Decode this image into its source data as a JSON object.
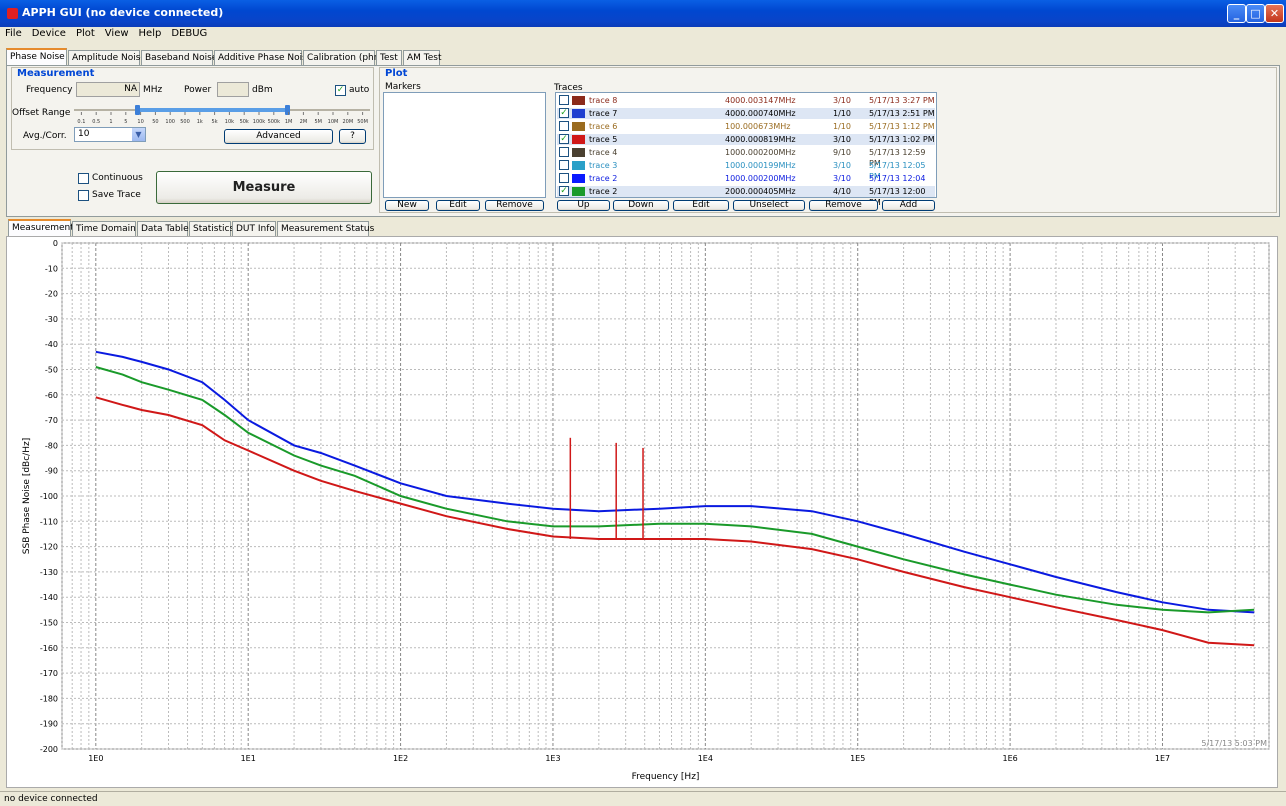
{
  "window": {
    "title": "APPH GUI (no device connected)"
  },
  "menu": [
    "File",
    "Device",
    "Plot",
    "View",
    "Help",
    "DEBUG"
  ],
  "main_tabs": [
    "Phase Noise",
    "Amplitude Noise",
    "Baseband Noise",
    "Additive Phase Noise",
    "Calibration (phn)",
    "Test",
    "AM Test"
  ],
  "measurement": {
    "title": "Measurement",
    "frequency_label": "Frequency",
    "frequency_value": "NA",
    "frequency_unit": "MHz",
    "power_label": "Power",
    "power_value": "",
    "power_unit": "dBm",
    "auto_label": "auto",
    "auto_checked": true,
    "offset_range_label": "Offset Range",
    "offset_ticks": [
      "0.1",
      "0.5",
      "1",
      "5",
      "10",
      "50",
      "100",
      "500",
      "1k",
      "5k",
      "10k",
      "50k",
      "100k",
      "500k",
      "1M",
      "2M",
      "5M",
      "10M",
      "20M",
      "50M"
    ],
    "avg_label": "Avg./Corr.",
    "avg_value": "10",
    "advanced_label": "Advanced",
    "help_label": "?",
    "continuous_label": "Continuous",
    "save_trace_label": "Save Trace",
    "measure_label": "Measure"
  },
  "plot_panel": {
    "title": "Plot",
    "markers_label": "Markers",
    "traces_label": "Traces",
    "marker_buttons": [
      "New",
      "Edit",
      "Remove"
    ],
    "trace_buttons": [
      "Up",
      "Down",
      "Edit",
      "Unselect",
      "Remove",
      "Add"
    ],
    "traces": [
      {
        "checked": false,
        "swatch": "#8b2a1a",
        "name": "trace 8",
        "freq": "4000.003147MHz",
        "avg": "3/10",
        "date": "5/17/13 3:27 PM",
        "text_color": "#8b2a1a",
        "selected": false
      },
      {
        "checked": true,
        "swatch": "#1f3fd0",
        "name": "trace 7",
        "freq": "4000.000740MHz",
        "avg": "1/10",
        "date": "5/17/13 2:51 PM",
        "text_color": "#000000",
        "selected": true
      },
      {
        "checked": false,
        "swatch": "#9a6b1f",
        "name": "trace 6",
        "freq": "100.000673MHz",
        "avg": "1/10",
        "date": "5/17/13 1:12 PM",
        "text_color": "#9a6b1f",
        "selected": false
      },
      {
        "checked": true,
        "swatch": "#d01818",
        "name": "trace 5",
        "freq": "4000.000819MHz",
        "avg": "3/10",
        "date": "5/17/13 1:02 PM",
        "text_color": "#000000",
        "selected": true
      },
      {
        "checked": false,
        "swatch": "#4a4030",
        "name": "trace 4",
        "freq": "1000.000200MHz",
        "avg": "9/10",
        "date": "5/17/13 12:59 PM",
        "text_color": "#4a4030",
        "selected": false
      },
      {
        "checked": false,
        "swatch": "#2aa0c8",
        "name": "trace 3",
        "freq": "1000.000199MHz",
        "avg": "3/10",
        "date": "5/17/13 12:05 PM",
        "text_color": "#2a90c0",
        "selected": false
      },
      {
        "checked": false,
        "swatch": "#0a1aff",
        "name": "trace 2",
        "freq": "1000.000200MHz",
        "avg": "3/10",
        "date": "5/17/13 12:04 PM",
        "text_color": "#0a1ae0",
        "selected": false
      },
      {
        "checked": true,
        "swatch": "#1a9a2a",
        "name": "trace 2",
        "freq": "2000.000405MHz",
        "avg": "4/10",
        "date": "5/17/13 12:00 PM",
        "text_color": "#000000",
        "selected": true
      }
    ]
  },
  "sub_tabs": [
    "Measurement",
    "Time Domain",
    "Data Table",
    "Statistics",
    "DUT Info",
    "Measurement Status"
  ],
  "chart_data": {
    "type": "line",
    "xlabel": "Frequency [Hz]",
    "ylabel": "SSB Phase Noise [dBc/Hz]",
    "x_scale": "log",
    "xlim": [
      0.6,
      50000000
    ],
    "ylim": [
      -200,
      0
    ],
    "x_tick_labels": [
      "1E0",
      "1E1",
      "1E2",
      "1E3",
      "1E4",
      "1E5",
      "1E6",
      "1E7"
    ],
    "y_tick_values": [
      0,
      -10,
      -20,
      -30,
      -40,
      -50,
      -60,
      -70,
      -80,
      -90,
      -100,
      -110,
      -120,
      -130,
      -140,
      -150,
      -160,
      -170,
      -180,
      -190,
      -200
    ],
    "grid": true,
    "timestamp": "5/17/13 5:03 PM",
    "series": [
      {
        "color": "#0a1ae0",
        "x": [
          1,
          1.5,
          2,
          3,
          5,
          7,
          10,
          20,
          30,
          50,
          100,
          200,
          500,
          1000,
          2000,
          5000,
          10000,
          20000,
          50000,
          100000,
          200000,
          500000,
          1000000,
          2000000,
          5000000,
          10000000,
          20000000,
          40000000
        ],
        "y": [
          -43,
          -45,
          -47,
          -50,
          -55,
          -62,
          -70,
          -80,
          -83,
          -88,
          -95,
          -100,
          -103,
          -105,
          -106,
          -105,
          -104,
          -104,
          -106,
          -110,
          -115,
          -122,
          -127,
          -132,
          -138,
          -142,
          -145,
          -146
        ]
      },
      {
        "color": "#1a9a2a",
        "x": [
          1,
          1.5,
          2,
          3,
          5,
          7,
          10,
          20,
          30,
          50,
          100,
          200,
          500,
          1000,
          2000,
          5000,
          10000,
          20000,
          50000,
          100000,
          200000,
          500000,
          1000000,
          2000000,
          5000000,
          10000000,
          20000000,
          40000000
        ],
        "y": [
          -49,
          -52,
          -55,
          -58,
          -62,
          -68,
          -75,
          -84,
          -88,
          -92,
          -100,
          -105,
          -110,
          -112,
          -112,
          -111,
          -111,
          -112,
          -115,
          -120,
          -125,
          -131,
          -135,
          -139,
          -143,
          -145,
          -146,
          -145
        ]
      },
      {
        "color": "#d01818",
        "x": [
          1,
          1.5,
          2,
          3,
          5,
          7,
          10,
          20,
          30,
          50,
          100,
          200,
          500,
          1000,
          2000,
          5000,
          10000,
          20000,
          50000,
          100000,
          200000,
          500000,
          1000000,
          2000000,
          5000000,
          10000000,
          20000000,
          40000000
        ],
        "y": [
          -61,
          -64,
          -66,
          -68,
          -72,
          -78,
          -82,
          -90,
          -94,
          -98,
          -103,
          -108,
          -113,
          -116,
          -117,
          -117,
          -117,
          -118,
          -121,
          -125,
          -130,
          -136,
          -140,
          -144,
          -149,
          -153,
          -158,
          -159
        ]
      }
    ],
    "spurs": [
      {
        "color": "#d01818",
        "x": 1300,
        "y_top": -77,
        "y_base": -117
      },
      {
        "color": "#d01818",
        "x": 2600,
        "y_top": -79,
        "y_base": -117
      },
      {
        "color": "#d01818",
        "x": 3900,
        "y_top": -81,
        "y_base": -117
      }
    ]
  },
  "status": "no device connected"
}
